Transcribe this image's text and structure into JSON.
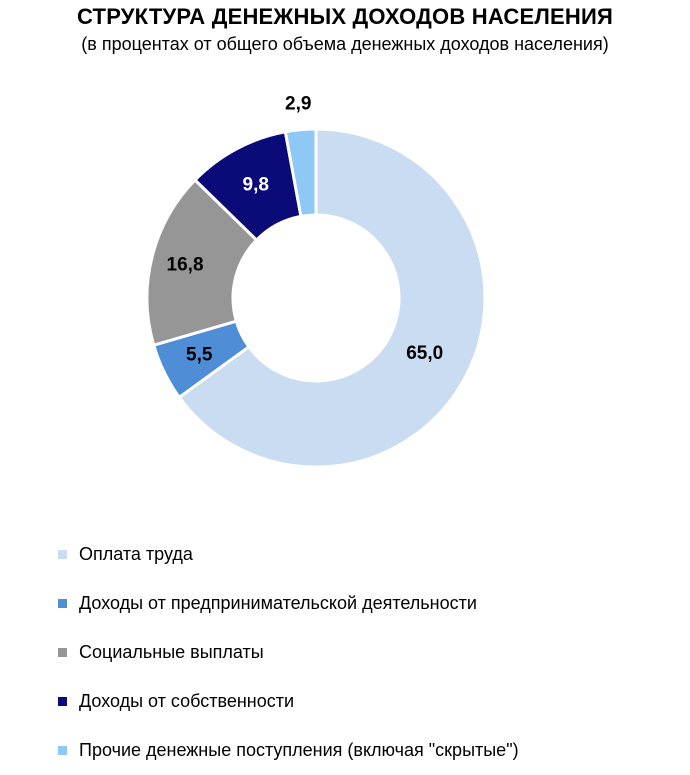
{
  "chart_data": {
    "type": "pie",
    "title": "СТРУКТУРА ДЕНЕЖНЫХ ДОХОДОВ НАСЕЛЕНИЯ",
    "subtitle": "(в процентах от общего объема денежных доходов населения)",
    "donut": true,
    "categories": [
      "Оплата труда",
      "Доходы от предпринимательской деятельности",
      "Социальные выплаты",
      "Доходы от собственности",
      "Прочие денежные поступления (включая \"скрытые\")"
    ],
    "values": [
      65.0,
      5.5,
      16.8,
      9.8,
      2.9
    ],
    "value_labels": [
      "65,0",
      "5,5",
      "16,8",
      "9,8",
      "2,9"
    ],
    "colors": [
      "#C9DCF1",
      "#4F8DD6",
      "#969696",
      "#0A0A78",
      "#8EC8F5"
    ],
    "label_colors": [
      "#000000",
      "#000000",
      "#000000",
      "#FFFFFF",
      "#000000"
    ],
    "legend_position": "bottom"
  }
}
